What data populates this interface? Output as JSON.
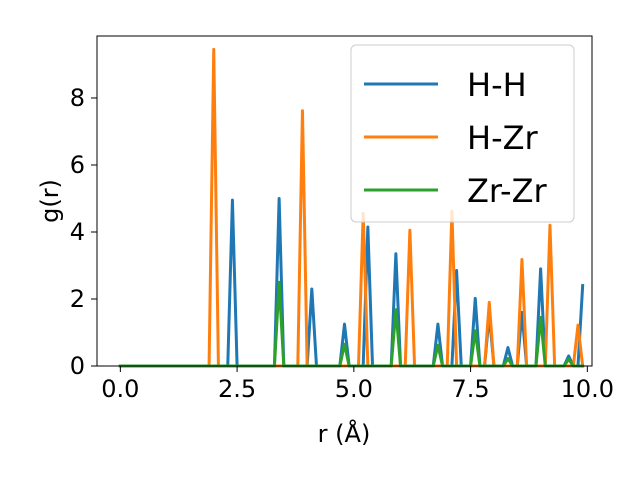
{
  "chart_data": {
    "type": "line",
    "title": "",
    "xlabel": "r (Å)",
    "ylabel": "g(r)",
    "xlim": [
      -0.5,
      10.1
    ],
    "ylim": [
      0,
      9.85
    ],
    "xticks": [
      "0.0",
      "2.5",
      "5.0",
      "7.5",
      "10.0"
    ],
    "xtick_values": [
      0,
      2.5,
      5,
      7.5,
      10
    ],
    "yticks": [
      "0",
      "2",
      "4",
      "6",
      "8"
    ],
    "ytick_values": [
      0,
      2,
      4,
      6,
      8
    ],
    "grid": false,
    "legend": "top-right",
    "series": [
      {
        "name": "H-H",
        "color": "#1f77b4",
        "x": [
          0.0,
          2.3,
          2.4,
          2.5,
          3.3,
          3.4,
          3.5,
          4.0,
          4.1,
          4.2,
          4.7,
          4.8,
          4.9,
          5.2,
          5.3,
          5.4,
          5.8,
          5.9,
          6.0,
          6.7,
          6.8,
          6.9,
          7.1,
          7.2,
          7.3,
          7.5,
          7.6,
          7.7,
          7.8,
          7.9,
          8.0,
          8.2,
          8.3,
          8.4,
          8.5,
          8.6,
          8.7,
          8.9,
          9.0,
          9.1,
          9.5,
          9.6,
          9.7,
          9.8,
          9.9
        ],
        "y": [
          0,
          0,
          4.95,
          0,
          0,
          5.0,
          0,
          0,
          2.3,
          0,
          0,
          1.25,
          0,
          0,
          4.15,
          0,
          0,
          3.35,
          0,
          0,
          1.25,
          0,
          0,
          2.85,
          0,
          0,
          2.02,
          0,
          0,
          1.55,
          0,
          0,
          0.55,
          0,
          0,
          1.6,
          0,
          0,
          2.9,
          0,
          0,
          0.3,
          0,
          0,
          2.4
        ]
      },
      {
        "name": "H-Zr",
        "color": "#ff7f0e",
        "x": [
          0.0,
          1.9,
          2.0,
          2.1,
          3.8,
          3.9,
          4.0,
          5.1,
          5.2,
          5.3,
          6.1,
          6.2,
          6.3,
          7.0,
          7.1,
          7.2,
          7.8,
          7.9,
          8.0,
          8.5,
          8.6,
          8.7,
          9.1,
          9.2,
          9.3,
          9.7,
          9.8,
          9.9
        ],
        "y": [
          0,
          0,
          9.45,
          0,
          0,
          7.62,
          0,
          0,
          4.55,
          0,
          0,
          4.05,
          0,
          0,
          4.62,
          0,
          0,
          1.9,
          0,
          0,
          3.18,
          0,
          0,
          4.2,
          0,
          0,
          1.22,
          0
        ]
      },
      {
        "name": "Zr-Zr",
        "color": "#2ca02c",
        "x": [
          0.0,
          3.3,
          3.4,
          3.5,
          4.7,
          4.8,
          4.9,
          5.8,
          5.9,
          6.0,
          6.7,
          6.8,
          6.9,
          7.5,
          7.6,
          7.7,
          8.2,
          8.3,
          8.4,
          8.9,
          9.0,
          9.1,
          9.5,
          9.6,
          9.7,
          9.9
        ],
        "y": [
          0,
          0,
          2.5,
          0,
          0,
          0.65,
          0,
          0,
          1.68,
          0,
          0,
          0.62,
          0,
          0,
          1.05,
          0,
          0,
          0.22,
          0,
          0,
          1.45,
          0,
          0,
          0.2,
          0,
          0
        ]
      }
    ]
  }
}
